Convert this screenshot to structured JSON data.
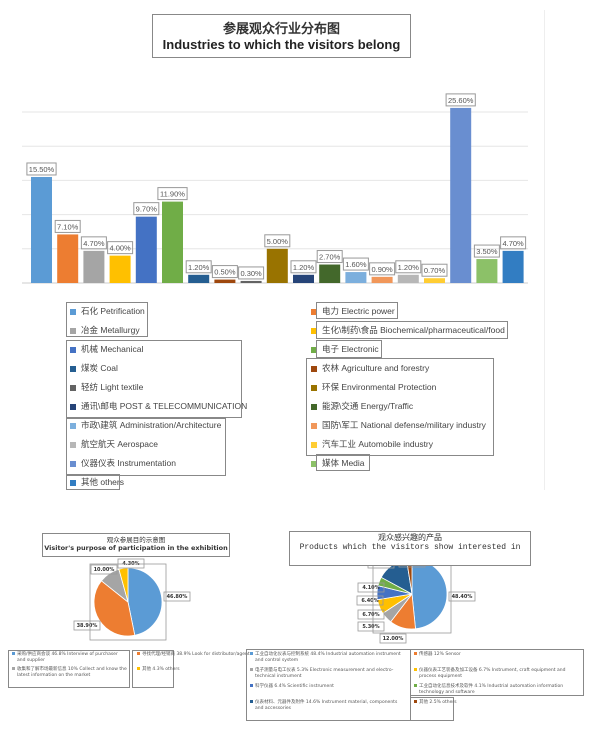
{
  "chart_data": [
    {
      "type": "bar",
      "title": "参展观众行业分布图",
      "subtitle": "Industries to which the visitors belong",
      "ylim": [
        0,
        25
      ],
      "grid": true,
      "legend_placement": "bottom",
      "categories": [
        "石化 Petrification",
        "电力 Electric power",
        "冶金 Metallurgy",
        "生化\\制药\\食品 Biochemical/pharmaceutical/food",
        "机械 Mechanical",
        "电子 Electronic",
        "煤炭 Coal",
        "农林 Agriculture and forestry",
        "轻纺 Light textile",
        "环保 Environmental Protection",
        "通讯\\邮电 POST & TELECOMMUNICATION",
        "能源\\交通 Energy/Traffic",
        "市政\\建筑 Administration/Architecture",
        "国防\\军工 National defense/military industry",
        "航空航天 Aerospace",
        "汽车工业 Automobile industry",
        "仪器仪表 Instrumentation",
        "媒体 Media",
        "其他 others"
      ],
      "values": [
        15.5,
        7.1,
        4.7,
        4.0,
        9.7,
        11.9,
        1.2,
        0.5,
        0.3,
        5.0,
        1.2,
        2.7,
        1.6,
        0.9,
        1.2,
        0.7,
        25.6,
        3.5,
        4.7
      ],
      "data_labels": [
        "15.50%",
        "7.10%",
        "4.70%",
        "4.00%",
        "9.70%",
        "11.90%",
        "1.20%",
        "0.50%",
        "0.30%",
        "5.00%",
        "1.20%",
        "2.70%",
        "1.60%",
        "0.90%",
        "1.20%",
        "0.70%",
        "25.60%",
        "3.50%",
        "4.70%"
      ],
      "colors": [
        "#5b9bd5",
        "#ed7d31",
        "#a5a5a5",
        "#ffc000",
        "#4472c4",
        "#70ad47",
        "#255e91",
        "#9e480e",
        "#636363",
        "#997300",
        "#264478",
        "#43682b",
        "#7cafdd",
        "#f1975a",
        "#b7b7b7",
        "#ffcd33",
        "#698ed0",
        "#8cc168",
        "#327dc2"
      ]
    },
    {
      "type": "pie",
      "title": "观众参展目的示意图",
      "subtitle": "Visitor's purpose of participation in the exhibition",
      "values": [
        46.8,
        38.9,
        10.0,
        4.3
      ],
      "data_labels": [
        "46.80%",
        "38.90%",
        "10.00%",
        "4.30%"
      ],
      "legend": [
        "采购/供应商会谈 46.8% Interview of purchaser and supplier",
        "寻找代理/经销商 38.9% Look for distributor/agent",
        "收集和了解市场最新信息 10% Collect and know the latest information on the market",
        "其他 4.3% others"
      ],
      "colors": [
        "#5b9bd5",
        "#ed7d31",
        "#a5a5a5",
        "#ffc000"
      ]
    },
    {
      "type": "pie",
      "title": "观众感兴趣的产品",
      "subtitle": "Products which the visitors show interested in",
      "values": [
        48.4,
        12.0,
        5.3,
        6.7,
        6.4,
        4.1,
        14.6,
        2.5
      ],
      "data_labels": [
        "48.40%",
        "12.00%",
        "5.30%",
        "6.70%",
        "6.40%",
        "4.10%",
        "14.60%",
        "2.50%"
      ],
      "legend": [
        "工业自动化仪表与控制系统 48.4% Industrial automation instrument and control system",
        "传感器 12% Sensor",
        "电子测量与电工仪表 5.3% Electronic measurement and electro-technical instrument",
        "仪器仪表工艺装备及加工设备 6.7% Instrument, craft equipment and process equipment",
        "科学仪器 6.4% Scientific instrument",
        "工业自动化信息技术及软件 4.1% Industrial automation information technology and software",
        "仪表材料、元器件及附件 14.6% Instrument material, components and accessories",
        "其他 2.5% others"
      ],
      "colors": [
        "#5b9bd5",
        "#ed7d31",
        "#a5a5a5",
        "#ffc000",
        "#4472c4",
        "#70ad47",
        "#255e91",
        "#9e480e"
      ]
    }
  ]
}
